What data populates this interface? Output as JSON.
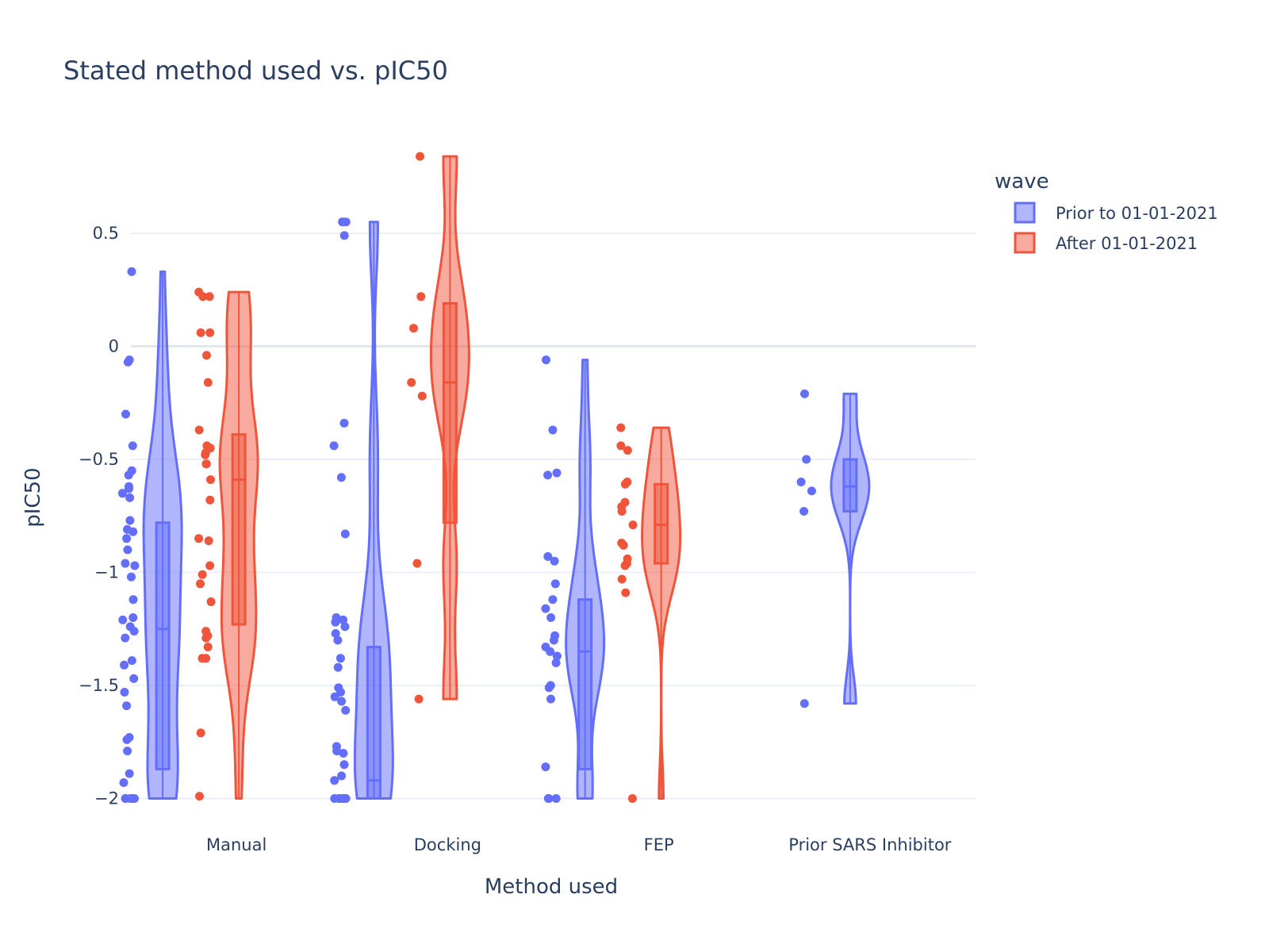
{
  "chart_data": {
    "type": "violin",
    "title": "Stated method used vs. pIC50",
    "xlabel": "Method used",
    "ylabel": "pIC50",
    "ylim": [
      -2.1,
      0.9
    ],
    "yticks": [
      0.5,
      0,
      -0.5,
      -1,
      -1.5,
      -2
    ],
    "ytick_labels": [
      "0.5",
      "0",
      "−0.5",
      "−1",
      "−1.5",
      "−2"
    ],
    "grid": true,
    "categories": [
      "Manual",
      "Docking",
      "FEP",
      "Prior SARS Inhibitor"
    ],
    "legend": {
      "title": "wave",
      "position": "top-right",
      "entries": [
        "Prior to 01-01-2021",
        "After 01-01-2021"
      ]
    },
    "series": [
      {
        "name": "Prior to 01-01-2021",
        "color": "#636efa",
        "fill": "rgba(99,110,250,0.5)",
        "groups": [
          {
            "category": "Manual",
            "range": [
              -2.0,
              0.33
            ],
            "box": {
              "q1": -1.87,
              "median": -1.25,
              "q3": -0.78
            },
            "points": [
              0.33,
              -0.06,
              -0.07,
              -0.3,
              -0.44,
              -0.55,
              -0.57,
              -0.62,
              -0.63,
              -0.65,
              -0.67,
              -0.77,
              -0.81,
              -0.82,
              -0.85,
              -0.9,
              -0.96,
              -0.97,
              -1.02,
              -1.12,
              -1.2,
              -1.21,
              -1.24,
              -1.26,
              -1.29,
              -1.39,
              -1.41,
              -1.47,
              -1.53,
              -1.59,
              -1.73,
              -1.74,
              -1.79,
              -1.89,
              -1.93,
              -2.0,
              -2.0,
              -2.0,
              -2.0,
              -2.0
            ]
          },
          {
            "category": "Docking",
            "range": [
              -2.0,
              0.55
            ],
            "box": {
              "q1": -2.0,
              "median": -1.92,
              "q3": -1.33
            },
            "points": [
              0.55,
              0.55,
              0.49,
              -0.34,
              -0.44,
              -0.58,
              -0.83,
              -1.2,
              -1.21,
              -1.22,
              -1.24,
              -1.27,
              -1.3,
              -1.38,
              -1.42,
              -1.51,
              -1.53,
              -1.55,
              -1.57,
              -1.61,
              -1.77,
              -1.79,
              -1.8,
              -1.85,
              -1.9,
              -1.92,
              -2.0,
              -2.0,
              -2.0,
              -2.0,
              -2.0,
              -2.0,
              -2.0
            ]
          },
          {
            "category": "FEP",
            "range": [
              -2.0,
              -0.06
            ],
            "box": {
              "q1": -1.87,
              "median": -1.35,
              "q3": -1.12
            },
            "points": [
              -0.06,
              -0.37,
              -0.56,
              -0.57,
              -0.93,
              -0.95,
              -1.05,
              -1.12,
              -1.16,
              -1.2,
              -1.28,
              -1.3,
              -1.33,
              -1.35,
              -1.37,
              -1.4,
              -1.5,
              -1.51,
              -1.56,
              -1.86,
              -2.0,
              -2.0,
              -2.0
            ]
          },
          {
            "category": "Prior SARS Inhibitor",
            "range": [
              -1.58,
              -0.21
            ],
            "box": {
              "q1": -0.73,
              "median": -0.62,
              "q3": -0.5
            },
            "points": [
              -0.21,
              -0.5,
              -0.6,
              -0.64,
              -0.73,
              -1.58
            ]
          }
        ]
      },
      {
        "name": "After 01-01-2021",
        "color": "#ef553b",
        "fill": "rgba(239,85,59,0.5)",
        "groups": [
          {
            "category": "Manual",
            "range": [
              -2.0,
              0.24
            ],
            "box": {
              "q1": -1.23,
              "median": -0.59,
              "q3": -0.39
            },
            "points": [
              0.24,
              0.22,
              0.22,
              0.06,
              0.06,
              -0.04,
              -0.16,
              -0.37,
              -0.44,
              -0.45,
              -0.47,
              -0.48,
              -0.52,
              -0.52,
              -0.59,
              -0.68,
              -0.85,
              -0.86,
              -0.97,
              -1.01,
              -1.05,
              -1.13,
              -1.26,
              -1.28,
              -1.29,
              -1.33,
              -1.38,
              -1.38,
              -1.71,
              -1.99
            ]
          },
          {
            "category": "Docking",
            "range": [
              -1.56,
              0.84
            ],
            "box": {
              "q1": -0.78,
              "median": -0.16,
              "q3": 0.19
            },
            "points": [
              0.84,
              0.22,
              0.08,
              -0.16,
              -0.22,
              -0.96,
              -1.56
            ]
          },
          {
            "category": "FEP",
            "range": [
              -2.0,
              -0.36
            ],
            "box": {
              "q1": -0.96,
              "median": -0.79,
              "q3": -0.61
            },
            "points": [
              -0.36,
              -0.44,
              -0.46,
              -0.6,
              -0.61,
              -0.69,
              -0.71,
              -0.73,
              -0.79,
              -0.87,
              -0.88,
              -0.94,
              -0.96,
              -0.97,
              -1.03,
              -1.09,
              -2.0
            ]
          }
        ]
      }
    ]
  }
}
